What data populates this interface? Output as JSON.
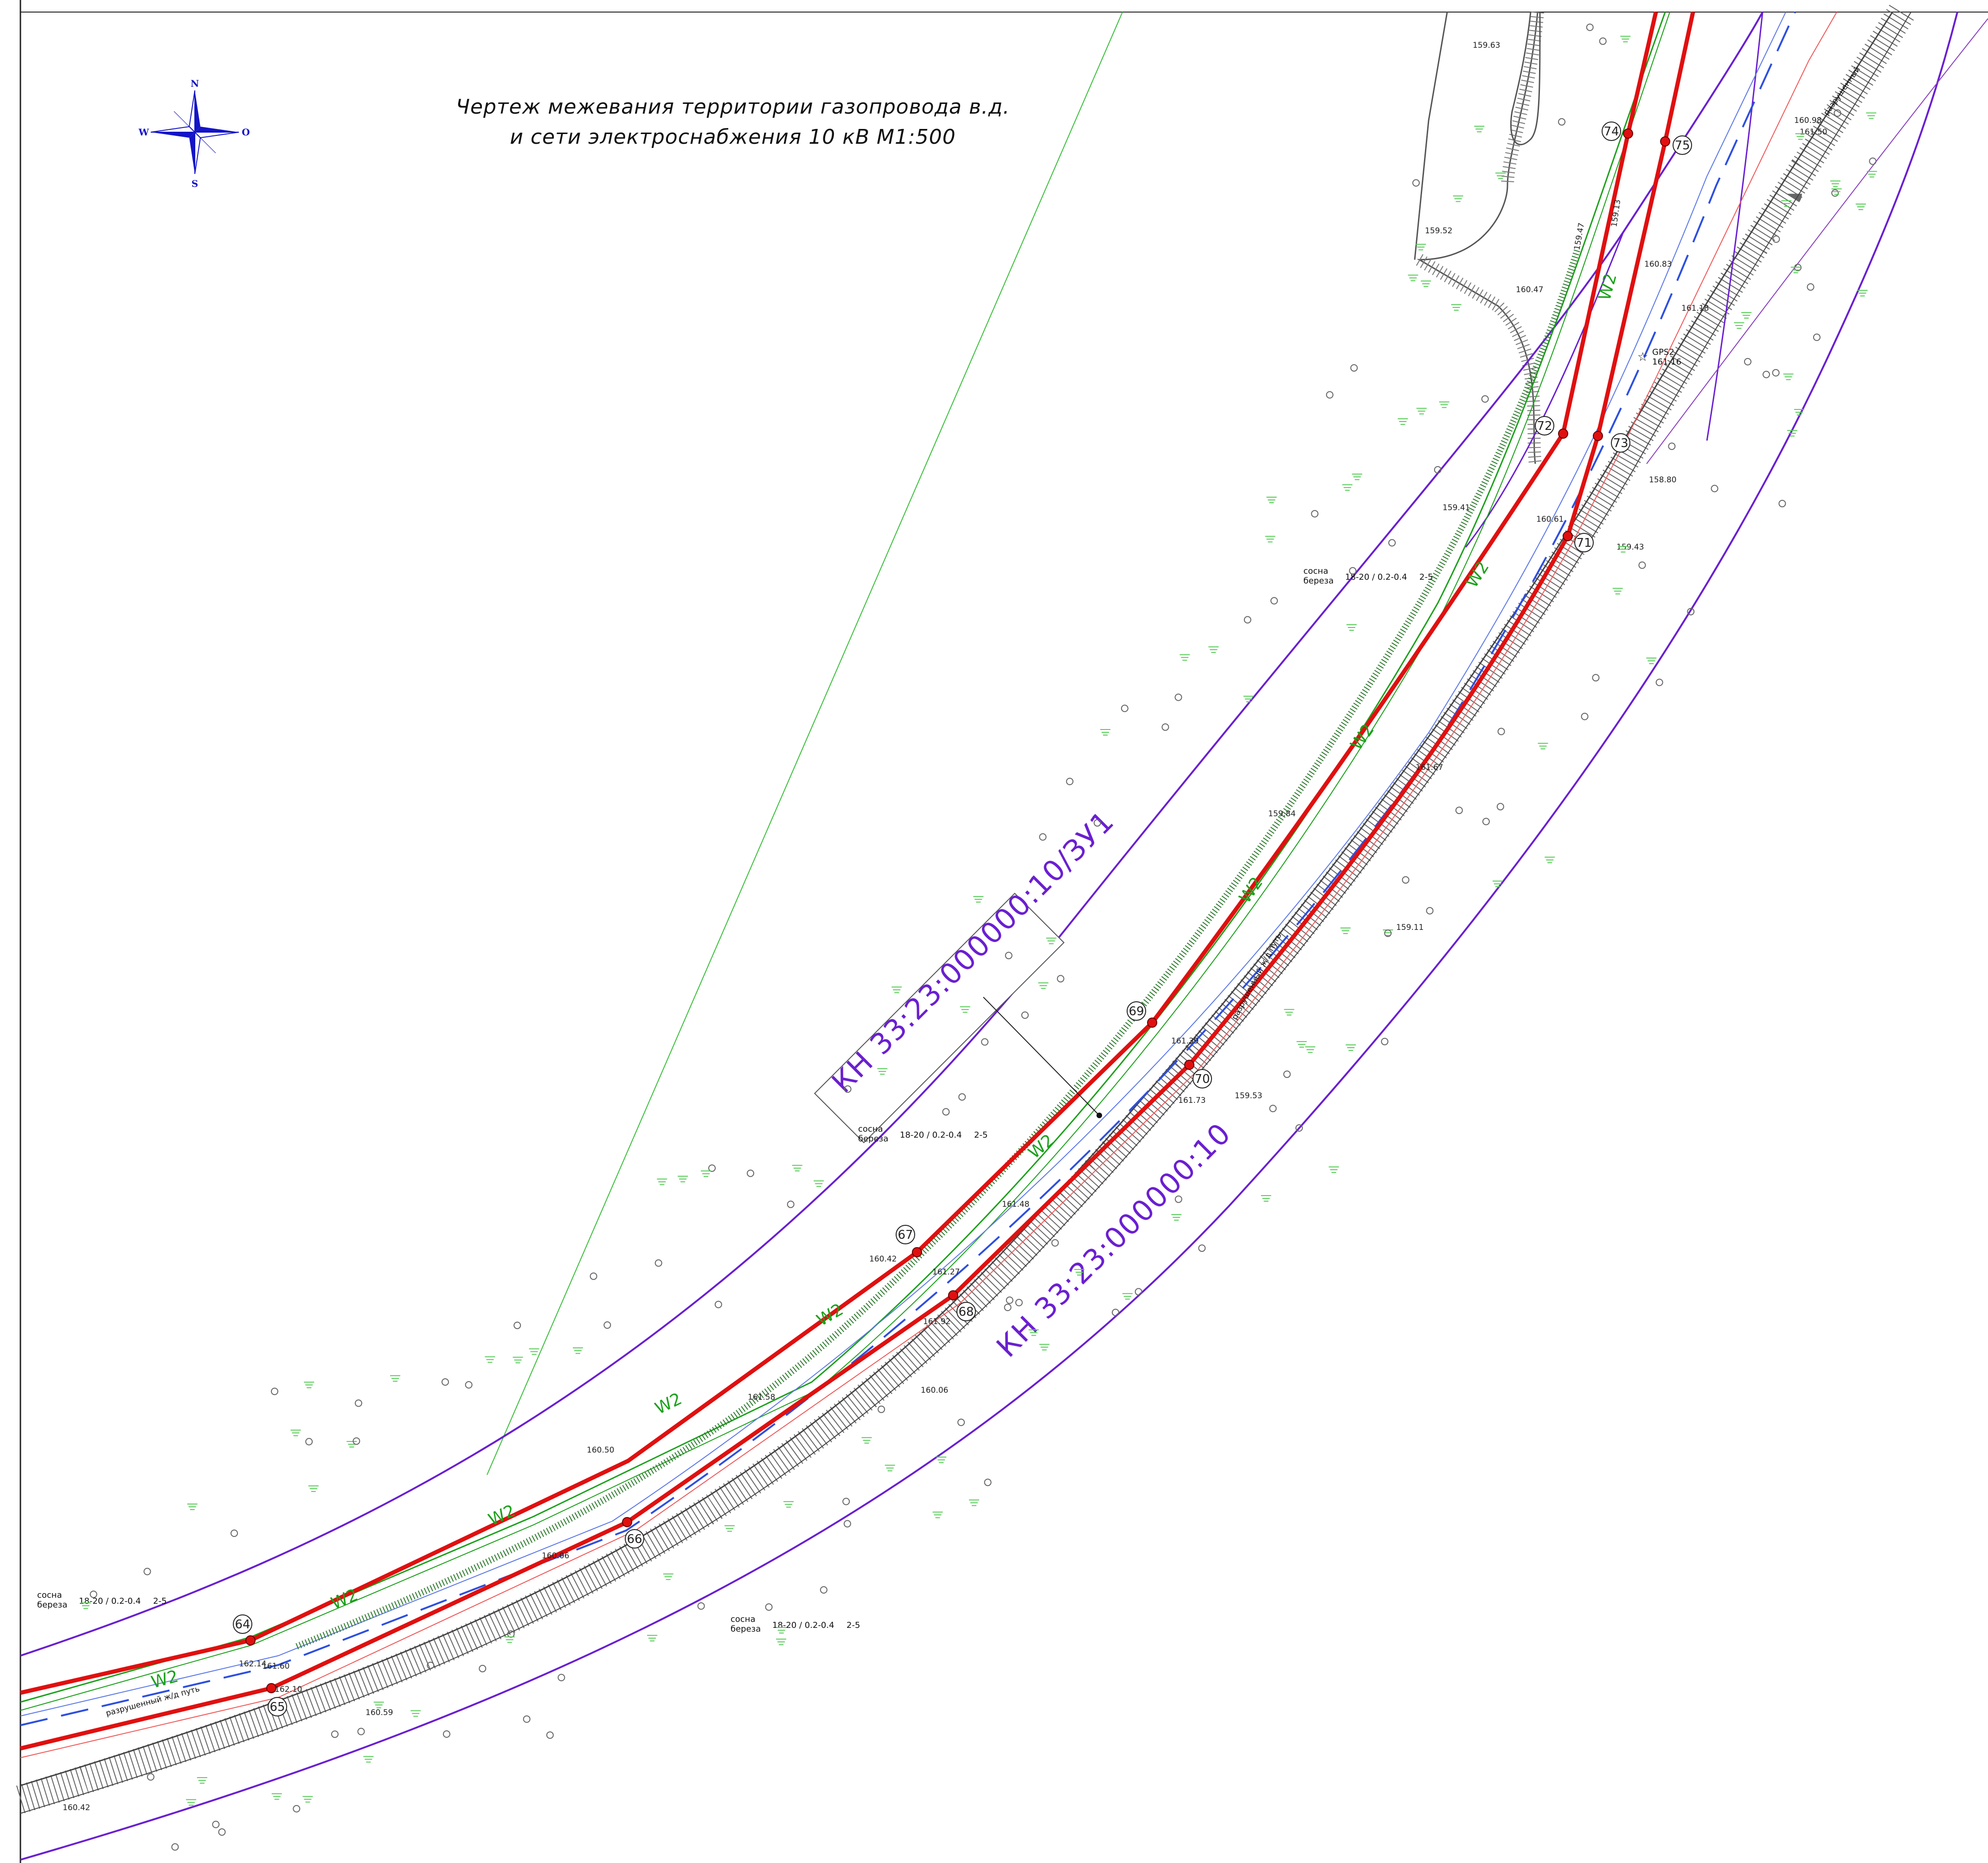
{
  "title": {
    "line1": "Чертеж межевания территории газопровода в.д.",
    "line2": "и сети электроснабжения 10 кВ М1:500"
  },
  "compass": {
    "north": "N",
    "south": "S",
    "east": "O",
    "west": "W"
  },
  "colors": {
    "gas_pipe": "#e01010",
    "utility_w2": "#1aa11a",
    "parcel": "#6a1fd1",
    "cable_blue": "#2d4fe0",
    "railway": "#444444",
    "vegetation": "#55cc55",
    "labels_red": "#e0303c"
  },
  "parcels": [
    {
      "id": "parcel-zu1",
      "label": "КН 33:23:000000:10/ЗУ1"
    },
    {
      "id": "parcel-main",
      "label": "КН 33:23:000000:10"
    }
  ],
  "utility_labels": [
    "W2",
    "W2",
    "W2",
    "W2",
    "W2",
    "W2",
    "W2",
    "W2",
    "W2",
    "W2"
  ],
  "railway_labels": [
    "разрушенный ж/д путь",
    "разрушенный ж/д путь",
    "разрушенный"
  ],
  "tree_notes": [
    {
      "a": "сосна",
      "b": "береза",
      "frac": "18-20 / 0.2-0.4",
      "suffix": "2-5"
    },
    {
      "a": "сосна",
      "b": "береза",
      "frac": "18-20 / 0.2-0.4",
      "suffix": "2-5"
    },
    {
      "a": "сосна",
      "b": "береза",
      "frac": "18-20 / 0.2-0.4",
      "suffix": "2-5"
    },
    {
      "a": "сосна",
      "b": "береза",
      "frac": "18-20 / 0.2-0.4",
      "suffix": "2-5"
    }
  ],
  "station": {
    "name": "GPS2",
    "elev": "161.16"
  },
  "pipe_points": [
    {
      "num": "64"
    },
    {
      "num": "65"
    },
    {
      "num": "66"
    },
    {
      "num": "67"
    },
    {
      "num": "68"
    },
    {
      "num": "69"
    },
    {
      "num": "70"
    },
    {
      "num": "71"
    },
    {
      "num": "72"
    },
    {
      "num": "73"
    },
    {
      "num": "74"
    },
    {
      "num": "75"
    }
  ],
  "elevations": [
    "159.63",
    "159.52",
    "159.47",
    "159.41",
    "159.43",
    "158.80",
    "160.83",
    "161.18",
    "160.61",
    "161.67",
    "159.84",
    "159.11",
    "161.39",
    "161.73",
    "159.53",
    "161.48",
    "161.27",
    "161.92",
    "160.42",
    "161.58",
    "160.06",
    "160.50",
    "160.06",
    "162.10",
    "160.59",
    "160.42",
    "161.60",
    "162.14",
    "159.13",
    "160.98",
    "161.50",
    "160.47"
  ]
}
